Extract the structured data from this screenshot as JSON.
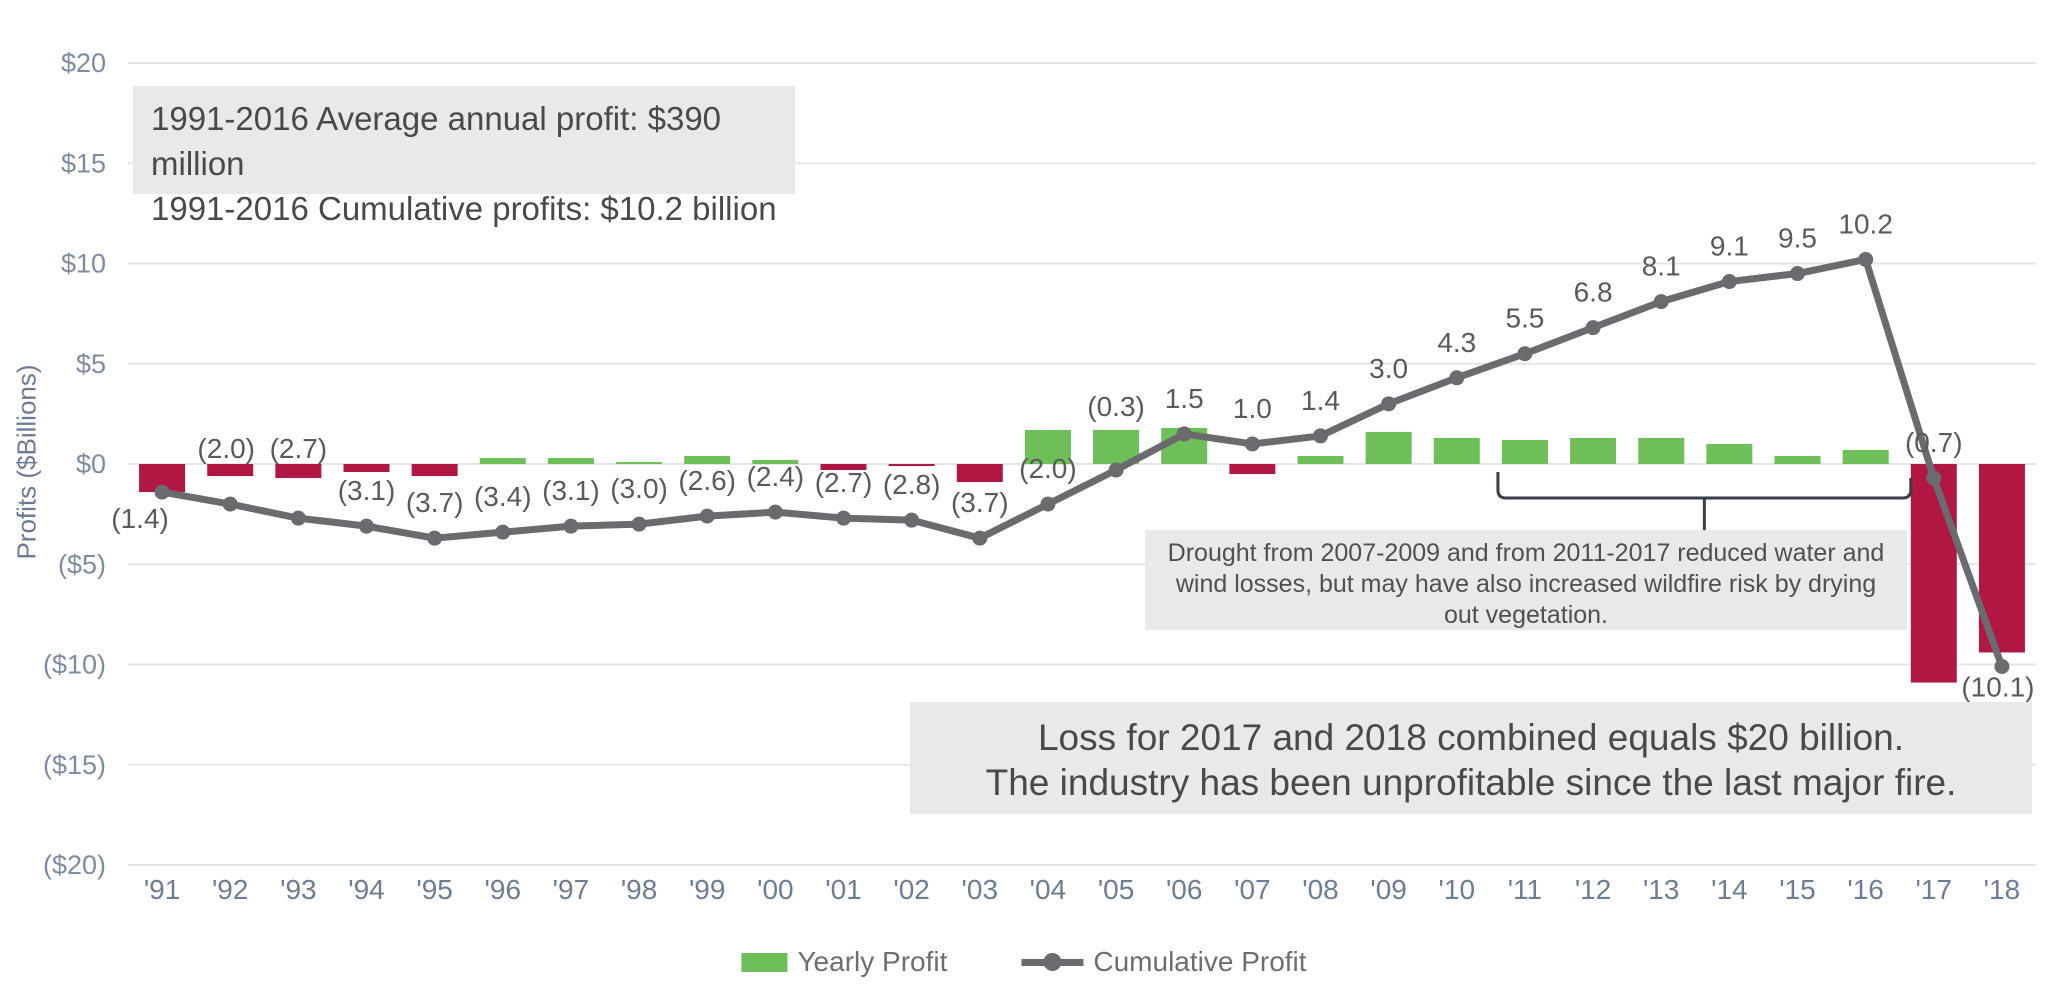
{
  "chart_data": {
    "type": "combo bar+line",
    "title": "",
    "xlabel": "",
    "ylabel": "Profits ($Billions)",
    "ylim": [
      -20,
      20
    ],
    "grid": "horizontal",
    "legend_position": "bottom-center",
    "categories": [
      "'91",
      "'92",
      "'93",
      "'94",
      "'95",
      "'96",
      "'97",
      "'98",
      "'99",
      "'00",
      "'01",
      "'02",
      "'03",
      "'04",
      "'05",
      "'06",
      "'07",
      "'08",
      "'09",
      "'10",
      "'11",
      "'12",
      "'13",
      "'14",
      "'15",
      "'16",
      "'17",
      "'18"
    ],
    "y_ticks": [
      "$20",
      "$15",
      "$10",
      "$5",
      "$0",
      "($5)",
      "($10)",
      "($15)",
      "($20)"
    ],
    "y_tick_values": [
      20,
      15,
      10,
      5,
      0,
      -5,
      -10,
      -15,
      -20
    ],
    "series": [
      {
        "name": "Yearly Profit",
        "type": "bar",
        "values": [
          -1.4,
          -0.6,
          -0.7,
          -0.4,
          -0.6,
          0.3,
          0.3,
          0.1,
          0.4,
          0.2,
          -0.3,
          -0.1,
          -0.9,
          1.7,
          1.7,
          1.8,
          -0.5,
          0.4,
          1.6,
          1.3,
          1.2,
          1.3,
          1.3,
          1.0,
          0.4,
          0.7,
          -10.9,
          -9.4
        ],
        "color_positive": "#6EBE59",
        "color_negative": "#B01843"
      },
      {
        "name": "Cumulative Profit",
        "type": "line",
        "values": [
          -1.4,
          -2.0,
          -2.7,
          -3.1,
          -3.7,
          -3.4,
          -3.1,
          -3.0,
          -2.6,
          -2.4,
          -2.7,
          -2.8,
          -3.7,
          -2.0,
          -0.3,
          1.5,
          1.0,
          1.4,
          3.0,
          4.3,
          5.5,
          6.8,
          8.1,
          9.1,
          9.5,
          10.2,
          -0.7,
          -10.1
        ],
        "labels": [
          "(1.4)",
          "(2.0)",
          "(2.7)",
          "(3.1)",
          "(3.7)",
          "(3.4)",
          "(3.1)",
          "(3.0)",
          "(2.6)",
          "(2.4)",
          "(2.7)",
          "(2.8)",
          "(3.7)",
          "(2.0)",
          "(0.3)",
          "1.5",
          "1.0",
          "1.4",
          "3.0",
          "4.3",
          "5.5",
          "6.8",
          "8.1",
          "9.1",
          "9.5",
          "10.2",
          "(0.7)",
          "(10.1)"
        ],
        "color": "#6A6B6E"
      }
    ],
    "label_offsets": {
      "0": [
        -22,
        36
      ],
      "1": [
        -4,
        -46
      ],
      "2": [
        0,
        -60
      ],
      "14": [
        0,
        -54
      ],
      "27": [
        -4,
        30
      ]
    },
    "colors": {
      "grid": "#E5E5E7",
      "axis_text": "#7E8CA2",
      "year_text": "#6C7D94",
      "data_label": "#595A5D",
      "note_bg": "#E9E9EA",
      "note_text": "#48494B",
      "bracket": "#3A3F47"
    }
  },
  "annotations": {
    "top_box": {
      "line1": "1991-2016 Average annual profit: $390 million",
      "line2": "1991-2016 Cumulative profits: $10.2 billion"
    },
    "drought_note": "Drought from 2007-2009 and from 2011-2017 reduced water and wind losses, but may have also increased wildfire risk by drying out vegetation.",
    "loss_note": {
      "line1": "Loss for 2017 and 2018 combined equals $20 billion.",
      "line2": "The industry has been unprofitable since the last major fire."
    },
    "bracket": {
      "from": "'11",
      "to": "'17"
    }
  },
  "legend": [
    {
      "label": "Yearly Profit",
      "swatch_color": "#6EBE59"
    },
    {
      "label": "Cumulative Profit",
      "swatch_color": "#6A6B6E"
    }
  ]
}
